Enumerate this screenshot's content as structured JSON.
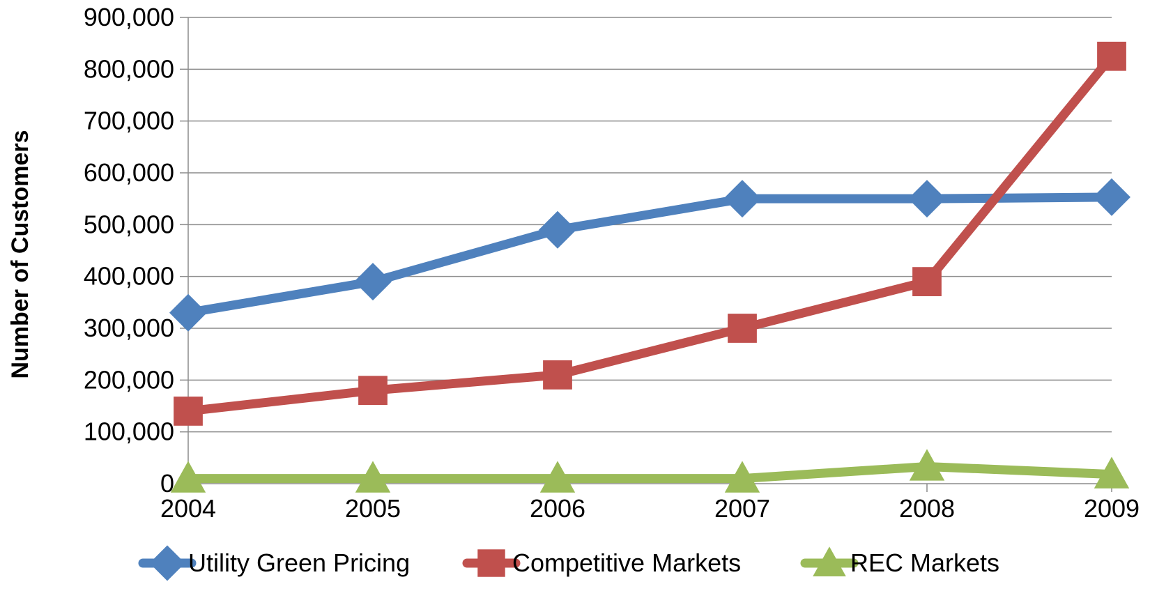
{
  "chart_data": {
    "type": "line",
    "xlabel": "",
    "ylabel": "Number of Customers",
    "categories": [
      "2004",
      "2005",
      "2006",
      "2007",
      "2008",
      "2009"
    ],
    "ylim": [
      0,
      900000
    ],
    "yticks": [
      0,
      100000,
      200000,
      300000,
      400000,
      500000,
      600000,
      700000,
      800000,
      900000
    ],
    "ytick_labels": [
      "0",
      "100,000",
      "200,000",
      "300,000",
      "400,000",
      "500,000",
      "600,000",
      "700,000",
      "800,000",
      "900,000"
    ],
    "grid": true,
    "legend_position": "bottom",
    "series": [
      {
        "name": "Utility Green Pricing",
        "color": "#4f81bd",
        "marker": "diamond",
        "values": [
          330000,
          390000,
          490000,
          550000,
          550000,
          553000
        ]
      },
      {
        "name": "Competitive Markets",
        "color": "#c0504d",
        "marker": "square",
        "values": [
          140000,
          180000,
          210000,
          300000,
          390000,
          825000
        ]
      },
      {
        "name": "REC Markets",
        "color": "#9bbb59",
        "marker": "triangle",
        "values": [
          10000,
          10000,
          10000,
          10000,
          33000,
          18000
        ]
      }
    ]
  }
}
